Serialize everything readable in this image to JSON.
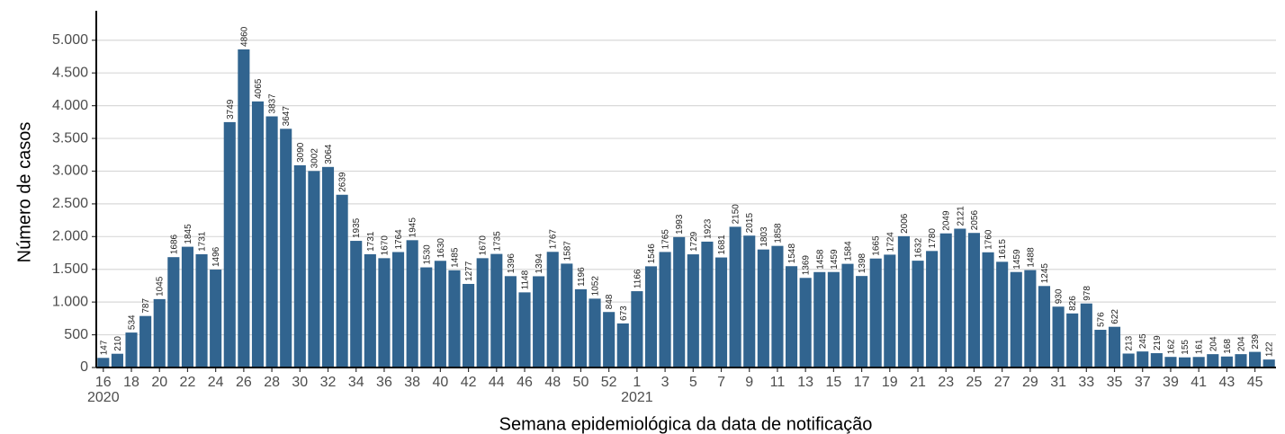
{
  "chart_data": {
    "type": "bar",
    "y_label": "Número de casos",
    "x_label": "Semana epidemiológica da data de notificação",
    "color": "#31648f",
    "grid": true,
    "categories": [
      "16\n2020",
      null,
      "18",
      null,
      "20",
      null,
      "22",
      null,
      "24",
      null,
      "26",
      null,
      "28",
      null,
      "30",
      null,
      "32",
      null,
      "34",
      null,
      "36",
      null,
      "38",
      null,
      "40",
      null,
      "42",
      null,
      "44",
      null,
      "46",
      null,
      "48",
      null,
      "50",
      null,
      "52",
      null,
      "1\n2021",
      null,
      "3",
      null,
      "5",
      null,
      "7",
      null,
      "9",
      null,
      "11",
      null,
      "13",
      null,
      "15",
      null,
      "17",
      null,
      "19",
      null,
      "21",
      null,
      "23",
      null,
      "25",
      null,
      "27",
      null,
      "29",
      null,
      "31",
      null,
      "33",
      null,
      "35",
      null,
      "37",
      null,
      "39",
      null,
      "41",
      null,
      "43",
      null,
      "45",
      null
    ],
    "values": [
      147,
      210,
      534,
      787,
      1045,
      1686,
      1845,
      1731,
      1496,
      3749,
      4860,
      4065,
      3837,
      3647,
      3090,
      3002,
      3064,
      2639,
      1935,
      1731,
      1670,
      1764,
      1945,
      1530,
      1630,
      1485,
      1277,
      1670,
      1735,
      1396,
      1148,
      1394,
      1767,
      1587,
      1196,
      1052,
      848,
      673,
      1166,
      1546,
      1765,
      1993,
      1729,
      1923,
      1681,
      2150,
      2015,
      1803,
      1858,
      1548,
      1369,
      1458,
      1459,
      1584,
      1398,
      1665,
      1724,
      2006,
      1632,
      1780,
      2049,
      2121,
      2056,
      1760,
      1615,
      1459,
      1488,
      1245,
      930,
      826,
      978,
      576,
      622,
      213,
      245,
      219,
      162,
      155,
      161,
      204,
      168,
      204,
      239,
      122
    ],
    "ylim": [
      0,
      5450
    ],
    "yticks": [
      0,
      500,
      {
        "value": 1000,
        "label": "1.000"
      },
      {
        "value": 1500,
        "label": "1.500"
      },
      {
        "value": 2000,
        "label": "2.000"
      },
      {
        "value": 2500,
        "label": "2.500"
      },
      {
        "value": 3000,
        "label": "3.000"
      },
      {
        "value": 3500,
        "label": "3.500"
      },
      {
        "value": 4000,
        "label": "4.000"
      },
      {
        "value": 4500,
        "label": "4.500"
      },
      {
        "value": 5000,
        "label": "5.000"
      }
    ]
  }
}
